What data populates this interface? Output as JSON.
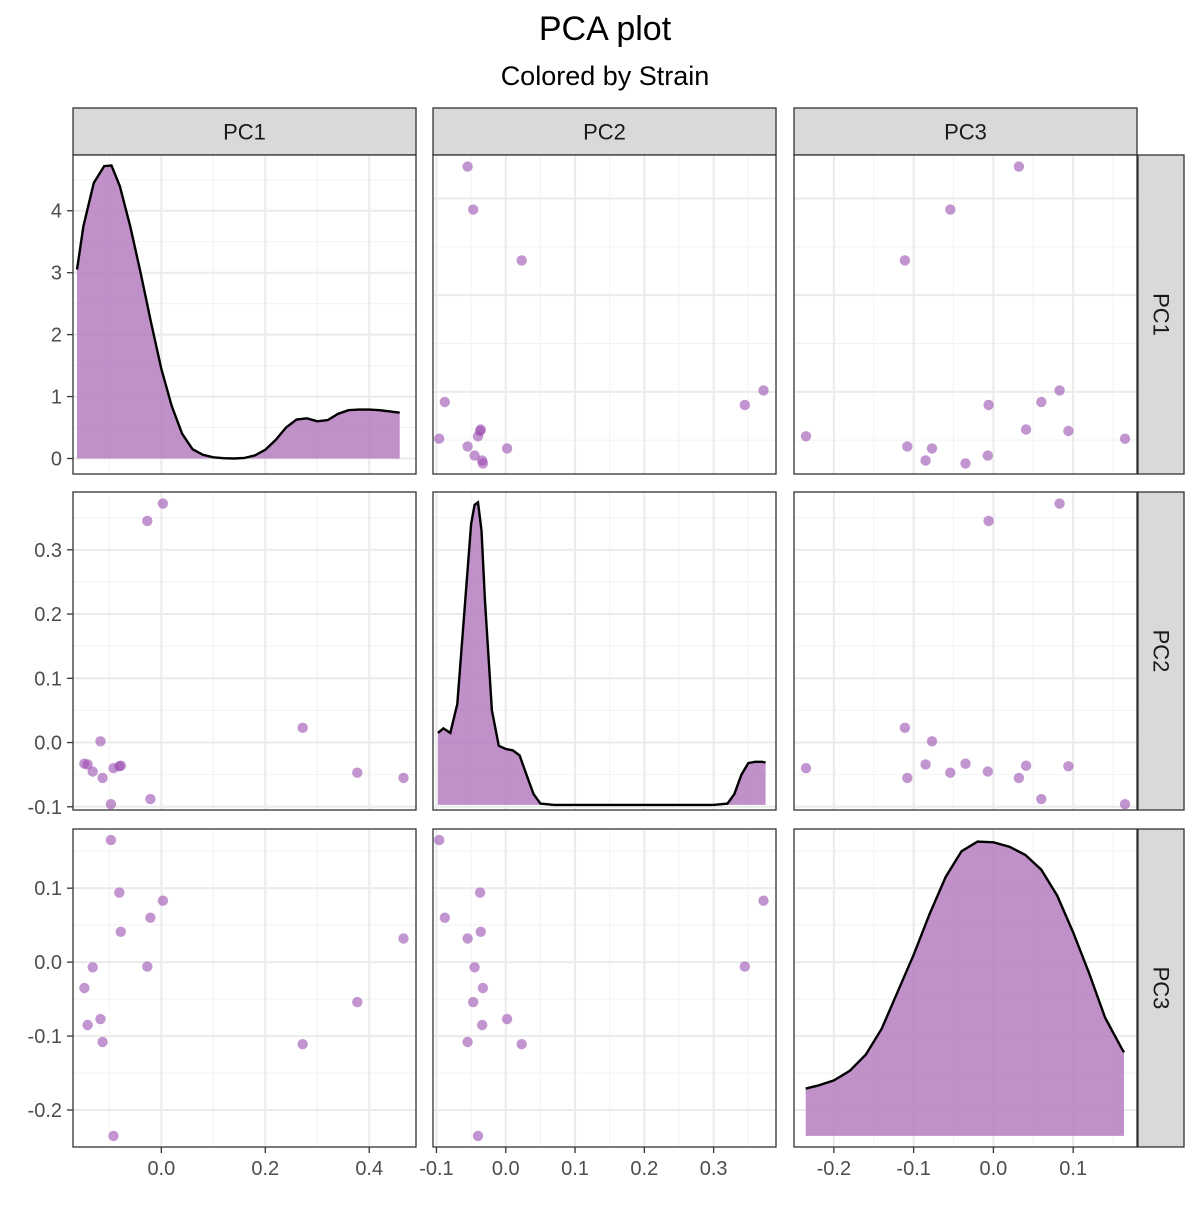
{
  "title": "PCA plot",
  "subtitle": "Colored by Strain",
  "colors": {
    "point": "#9b4fb0",
    "density_fill": "#b57cc0"
  },
  "chart_data": {
    "type": "scatter",
    "layout": "pairs-matrix",
    "variables": [
      "PC1",
      "PC2",
      "PC3"
    ],
    "diagonal": "density",
    "axes": {
      "PC1": {
        "lim": [
          -0.17,
          0.49
        ],
        "major_ticks": [
          0.0,
          0.2,
          0.4
        ],
        "tick_labels": [
          "0.0",
          "0.2",
          "0.4"
        ]
      },
      "PC2": {
        "lim": [
          -0.105,
          0.39
        ],
        "major_ticks": [
          -0.1,
          0.0,
          0.1,
          0.2,
          0.3
        ],
        "tick_labels": [
          "-0.1",
          "0.0",
          "0.1",
          "0.2",
          "0.3"
        ]
      },
      "PC3": {
        "lim": [
          -0.25,
          0.18
        ],
        "major_ticks": [
          -0.2,
          -0.1,
          0.0,
          0.1
        ],
        "tick_labels": [
          "-0.2",
          "-0.1",
          "0.0",
          "0.1"
        ]
      }
    },
    "density_axis": {
      "lim": [
        -0.25,
        4.9
      ],
      "major_ticks": [
        0,
        1,
        2,
        3,
        4
      ],
      "tick_labels": [
        "0",
        "1",
        "2",
        "3",
        "4"
      ]
    },
    "points": [
      {
        "PC1": -0.097,
        "PC2": -0.096,
        "PC3": 0.165
      },
      {
        "PC1": -0.081,
        "PC2": -0.037,
        "PC3": 0.094
      },
      {
        "PC1": 0.003,
        "PC2": 0.372,
        "PC3": 0.083
      },
      {
        "PC1": -0.021,
        "PC2": -0.088,
        "PC3": 0.06
      },
      {
        "PC1": -0.078,
        "PC2": -0.036,
        "PC3": 0.041
      },
      {
        "PC1": 0.466,
        "PC2": -0.055,
        "PC3": 0.032
      },
      {
        "PC1": -0.132,
        "PC2": -0.045,
        "PC3": -0.007
      },
      {
        "PC1": -0.027,
        "PC2": 0.345,
        "PC3": -0.006
      },
      {
        "PC1": -0.148,
        "PC2": -0.033,
        "PC3": -0.035
      },
      {
        "PC1": 0.377,
        "PC2": -0.047,
        "PC3": -0.054
      },
      {
        "PC1": -0.117,
        "PC2": 0.002,
        "PC3": -0.077
      },
      {
        "PC1": -0.142,
        "PC2": -0.034,
        "PC3": -0.085
      },
      {
        "PC1": -0.113,
        "PC2": -0.055,
        "PC3": -0.108
      },
      {
        "PC1": 0.272,
        "PC2": 0.023,
        "PC3": -0.111
      },
      {
        "PC1": -0.092,
        "PC2": -0.04,
        "PC3": -0.235
      }
    ],
    "densities": {
      "PC1": {
        "x": [
          -0.1623,
          -0.15,
          -0.13,
          -0.11,
          -0.096,
          -0.08,
          -0.06,
          -0.04,
          -0.02,
          0.0,
          0.02,
          0.04,
          0.06,
          0.08,
          0.1,
          0.12,
          0.14,
          0.16,
          0.18,
          0.2,
          0.22,
          0.24,
          0.26,
          0.28,
          0.3,
          0.32,
          0.34,
          0.36,
          0.38,
          0.4,
          0.42,
          0.44,
          0.4586
        ],
        "y": [
          3.05,
          3.75,
          4.45,
          4.72,
          4.73,
          4.4,
          3.75,
          3.0,
          2.2,
          1.45,
          0.85,
          0.4,
          0.15,
          0.06,
          0.02,
          0.005,
          0.0,
          0.01,
          0.05,
          0.14,
          0.3,
          0.5,
          0.63,
          0.65,
          0.6,
          0.62,
          0.72,
          0.78,
          0.79,
          0.79,
          0.78,
          0.76,
          0.74
        ]
      },
      "PC2": {
        "x": [
          -0.098,
          -0.09,
          -0.08,
          -0.07,
          -0.06,
          -0.05,
          -0.045,
          -0.04,
          -0.035,
          -0.03,
          -0.02,
          -0.01,
          0.0,
          0.01,
          0.02,
          0.03,
          0.04,
          0.05,
          0.07,
          0.1,
          0.15,
          0.2,
          0.25,
          0.3,
          0.32,
          0.33,
          0.34,
          0.35,
          0.36,
          0.37,
          0.375
        ],
        "y": [
          0.015,
          0.022,
          0.015,
          0.06,
          0.2,
          0.34,
          0.37,
          0.374,
          0.33,
          0.22,
          0.05,
          -0.005,
          -0.01,
          -0.012,
          -0.02,
          -0.05,
          -0.08,
          -0.095,
          -0.097,
          -0.097,
          -0.097,
          -0.097,
          -0.097,
          -0.097,
          -0.095,
          -0.08,
          -0.05,
          -0.032,
          -0.03,
          -0.03,
          -0.031
        ]
      },
      "PC3": {
        "x": [
          -0.2353,
          -0.22,
          -0.2,
          -0.18,
          -0.16,
          -0.14,
          -0.12,
          -0.1,
          -0.08,
          -0.06,
          -0.04,
          -0.02,
          0.0,
          0.02,
          0.04,
          0.06,
          0.08,
          0.1,
          0.12,
          0.14,
          0.16,
          0.1637
        ],
        "y": [
          -0.171,
          -0.167,
          -0.16,
          -0.147,
          -0.125,
          -0.09,
          -0.04,
          0.01,
          0.065,
          0.115,
          0.15,
          0.163,
          0.162,
          0.156,
          0.145,
          0.125,
          0.09,
          0.04,
          -0.015,
          -0.075,
          -0.115,
          -0.122
        ]
      }
    }
  }
}
